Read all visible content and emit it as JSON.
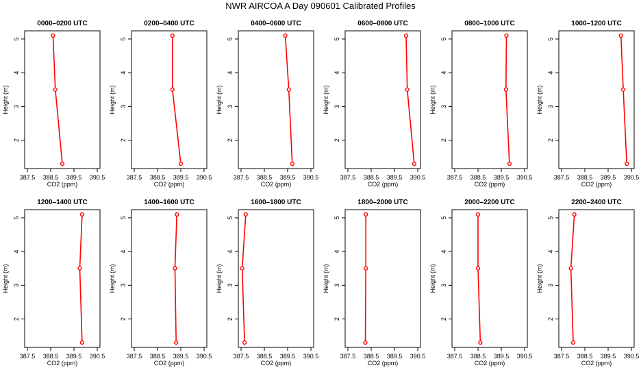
{
  "title": "NWR AIRCOA A  Day 090601  Calibrated Profiles",
  "colors": {
    "series": "#ff0000",
    "axis": "#000000"
  },
  "chart_data": [
    {
      "type": "line",
      "title": "0000–0200 UTC",
      "xlabel": "CO2 (ppm)",
      "ylabel": "Height (m)",
      "xlim": [
        387.5,
        390.5
      ],
      "ylim": [
        1.3,
        5.1
      ],
      "xticks": [
        "387.5",
        "388.5",
        "389.5",
        "390.5"
      ],
      "yticks": [
        "2",
        "3",
        "4",
        "5"
      ],
      "x": [
        389.0,
        388.7,
        388.6
      ],
      "y": [
        1.3,
        3.5,
        5.1
      ]
    },
    {
      "type": "line",
      "title": "0200–0400 UTC",
      "xlabel": "CO2 (ppm)",
      "ylabel": "Height (m)",
      "xlim": [
        387.5,
        390.5
      ],
      "ylim": [
        1.3,
        5.1
      ],
      "xticks": [
        "387.5",
        "388.5",
        "389.5",
        "390.5"
      ],
      "yticks": [
        "2",
        "3",
        "4",
        "5"
      ],
      "x": [
        389.5,
        389.14,
        389.14
      ],
      "y": [
        1.3,
        3.5,
        5.1
      ]
    },
    {
      "type": "line",
      "title": "0400–0600 UTC",
      "xlabel": "CO2 (ppm)",
      "ylabel": "Height (m)",
      "xlim": [
        387.5,
        390.5
      ],
      "ylim": [
        1.3,
        5.1
      ],
      "xticks": [
        "387.5",
        "388.5",
        "389.5",
        "390.5"
      ],
      "yticks": [
        "2",
        "3",
        "4",
        "5"
      ],
      "x": [
        389.7,
        389.55,
        389.4
      ],
      "y": [
        1.3,
        3.5,
        5.1
      ]
    },
    {
      "type": "line",
      "title": "0600–0800 UTC",
      "xlabel": "CO2 (ppm)",
      "ylabel": "Height (m)",
      "xlim": [
        387.5,
        390.5
      ],
      "ylim": [
        1.3,
        5.1
      ],
      "xticks": [
        "387.5",
        "388.5",
        "389.5",
        "390.5"
      ],
      "yticks": [
        "2",
        "3",
        "4",
        "5"
      ],
      "x": [
        390.35,
        390.05,
        390.0
      ],
      "y": [
        1.3,
        3.5,
        5.1
      ]
    },
    {
      "type": "line",
      "title": "0800–1000 UTC",
      "xlabel": "CO2 (ppm)",
      "ylabel": "Height (m)",
      "xlim": [
        387.5,
        390.5
      ],
      "ylim": [
        1.3,
        5.1
      ],
      "xticks": [
        "387.5",
        "388.5",
        "389.5",
        "390.5"
      ],
      "yticks": [
        "2",
        "3",
        "4",
        "5"
      ],
      "x": [
        389.85,
        389.7,
        389.72
      ],
      "y": [
        1.3,
        3.5,
        5.1
      ]
    },
    {
      "type": "line",
      "title": "1000–1200 UTC",
      "xlabel": "CO2 (ppm)",
      "ylabel": "Height (m)",
      "xlim": [
        387.5,
        390.5
      ],
      "ylim": [
        1.3,
        5.1
      ],
      "xticks": [
        "387.5",
        "388.5",
        "389.5",
        "390.5"
      ],
      "yticks": [
        "2",
        "3",
        "4",
        "5"
      ],
      "x": [
        390.3,
        390.15,
        390.05
      ],
      "y": [
        1.3,
        3.5,
        5.1
      ]
    },
    {
      "type": "line",
      "title": "1200–1400 UTC",
      "xlabel": "CO2 (ppm)",
      "ylabel": "Height (m)",
      "xlim": [
        387.5,
        390.5
      ],
      "ylim": [
        1.3,
        5.1
      ],
      "xticks": [
        "387.5",
        "388.5",
        "389.5",
        "390.5"
      ],
      "yticks": [
        "2",
        "3",
        "4",
        "5"
      ],
      "x": [
        389.85,
        389.75,
        389.85
      ],
      "y": [
        1.3,
        3.5,
        5.1
      ]
    },
    {
      "type": "line",
      "title": "1400–1600 UTC",
      "xlabel": "CO2 (ppm)",
      "ylabel": "Height (m)",
      "xlim": [
        387.5,
        390.5
      ],
      "ylim": [
        1.3,
        5.1
      ],
      "xticks": [
        "387.5",
        "388.5",
        "389.5",
        "390.5"
      ],
      "yticks": [
        "2",
        "3",
        "4",
        "5"
      ],
      "x": [
        389.3,
        389.25,
        389.33
      ],
      "y": [
        1.3,
        3.5,
        5.1
      ]
    },
    {
      "type": "line",
      "title": "1600–1800 UTC",
      "xlabel": "CO2 (ppm)",
      "ylabel": "Height (m)",
      "xlim": [
        387.5,
        390.5
      ],
      "ylim": [
        1.3,
        5.1
      ],
      "xticks": [
        "387.5",
        "388.5",
        "389.5",
        "390.5"
      ],
      "yticks": [
        "2",
        "3",
        "4",
        "5"
      ],
      "x": [
        387.65,
        387.55,
        387.7
      ],
      "y": [
        1.3,
        3.5,
        5.1
      ]
    },
    {
      "type": "line",
      "title": "1800–2000 UTC",
      "xlabel": "CO2 (ppm)",
      "ylabel": "Height (m)",
      "xlim": [
        387.5,
        390.5
      ],
      "ylim": [
        1.3,
        5.1
      ],
      "xticks": [
        "387.5",
        "388.5",
        "389.5",
        "390.5"
      ],
      "yticks": [
        "2",
        "3",
        "4",
        "5"
      ],
      "x": [
        388.25,
        388.27,
        388.27
      ],
      "y": [
        1.3,
        3.5,
        5.1
      ]
    },
    {
      "type": "line",
      "title": "2000–2200 UTC",
      "xlabel": "CO2 (ppm)",
      "ylabel": "Height (m)",
      "xlim": [
        387.5,
        390.5
      ],
      "ylim": [
        1.3,
        5.1
      ],
      "xticks": [
        "387.5",
        "388.5",
        "389.5",
        "390.5"
      ],
      "yticks": [
        "2",
        "3",
        "4",
        "5"
      ],
      "x": [
        388.6,
        388.5,
        388.5
      ],
      "y": [
        1.3,
        3.5,
        5.1
      ]
    },
    {
      "type": "line",
      "title": "2200–2400 UTC",
      "xlabel": "CO2 (ppm)",
      "ylabel": "Height (m)",
      "xlim": [
        387.5,
        390.5
      ],
      "ylim": [
        1.3,
        5.1
      ],
      "xticks": [
        "387.5",
        "388.5",
        "389.5",
        "390.5"
      ],
      "yticks": [
        "2",
        "3",
        "4",
        "5"
      ],
      "x": [
        388.0,
        387.9,
        388.05
      ],
      "y": [
        1.3,
        3.5,
        5.1
      ]
    }
  ]
}
